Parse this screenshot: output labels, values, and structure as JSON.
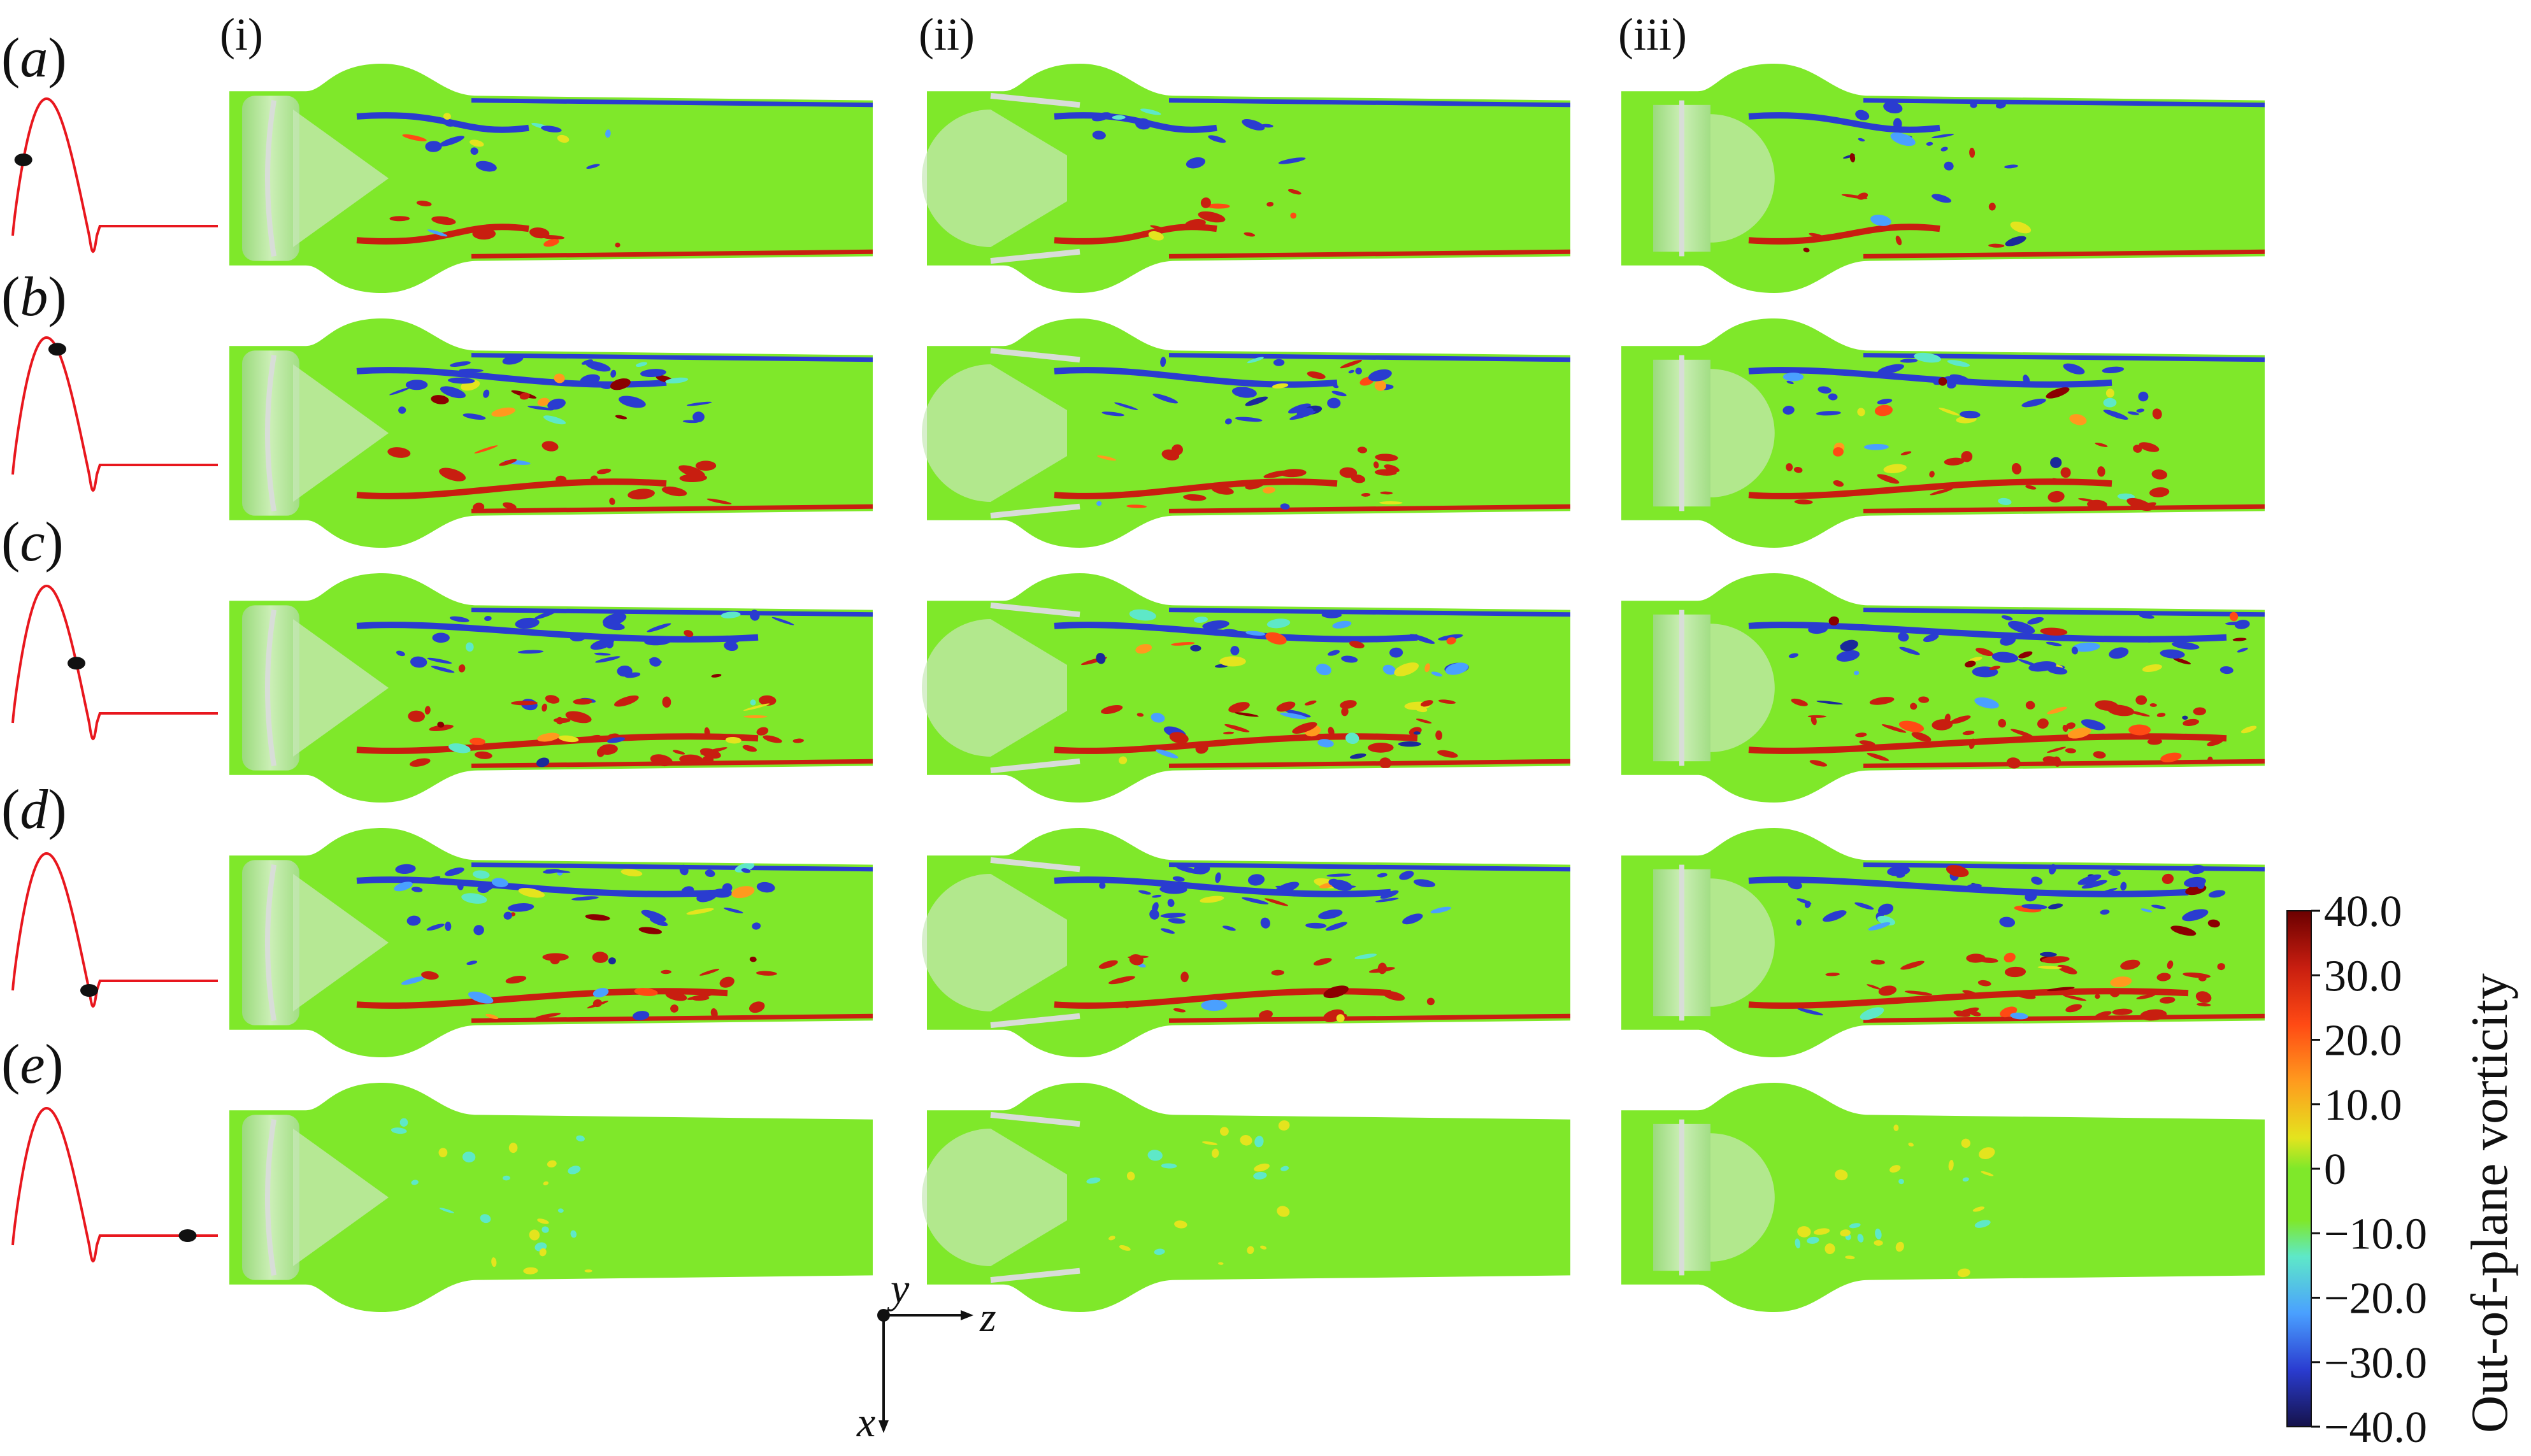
{
  "figure": {
    "row_labels": [
      {
        "open": "(",
        "letter": "a",
        "close": ")"
      },
      {
        "open": "(",
        "letter": "b",
        "close": ")"
      },
      {
        "open": "(",
        "letter": "c",
        "close": ")"
      },
      {
        "open": "(",
        "letter": "d",
        "close": ")"
      },
      {
        "open": "(",
        "letter": "e",
        "close": ")"
      }
    ],
    "column_labels": [
      "(i)",
      "(ii)",
      "(iii)"
    ],
    "cycle_phase_fraction": [
      0.1,
      0.42,
      0.6,
      0.72,
      0.95
    ],
    "colorbar": {
      "title": "Out-of-plane vorticity",
      "ticks": [
        "40.0",
        "30.0",
        "20.0",
        "10.0",
        "0",
        "−10.0",
        "−20.0",
        "−30.0",
        "−40.0"
      ],
      "colors": [
        "#6b0000",
        "#c81e10",
        "#ff4a14",
        "#ff9a1e",
        "#e4e41e",
        "#7fe82a",
        "#5ee8c8",
        "#4aa0ff",
        "#2a3cd0",
        "#15124a"
      ]
    },
    "axes": {
      "y": "y",
      "z": "z",
      "x": "x"
    },
    "colors": {
      "field": "#7fe82a",
      "waveform": "#e8171e",
      "marker": "#111111",
      "positive_vortex": "#c81e10",
      "negative_vortex": "#2a3cd0",
      "valve": "#d8ddd8"
    }
  }
}
